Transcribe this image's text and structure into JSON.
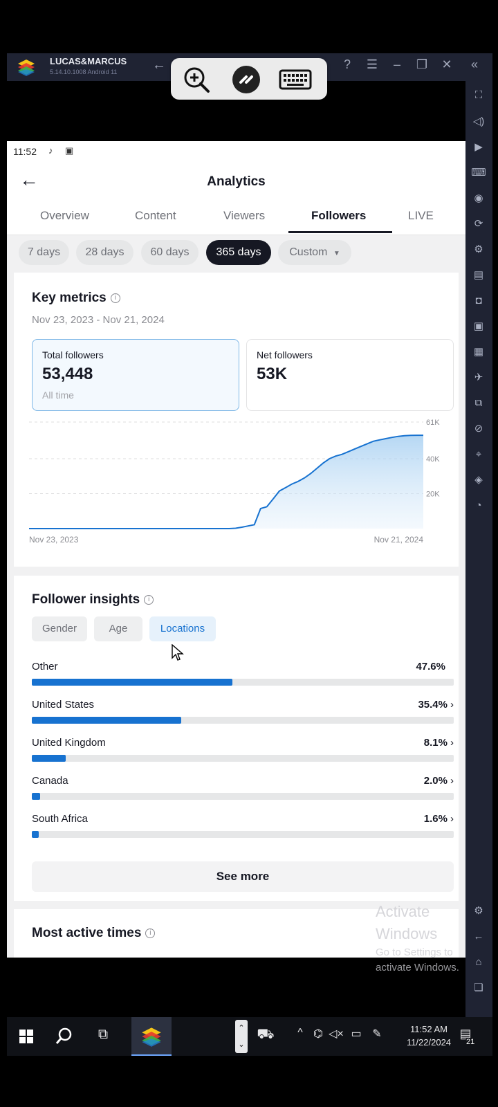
{
  "emulator": {
    "name": "LUCAS&MARCUS",
    "version": "5.14.10.1008  Android 11"
  },
  "status_bar": {
    "time": "11:52"
  },
  "header": {
    "title": "Analytics",
    "tabs": [
      "Overview",
      "Content",
      "Viewers",
      "Followers",
      "LIVE"
    ],
    "active_tab": "Followers"
  },
  "ranges": {
    "options": [
      "7 days",
      "28 days",
      "60 days",
      "365 days",
      "Custom"
    ],
    "selected": "365 days"
  },
  "key_metrics": {
    "title": "Key metrics",
    "date_range": "Nov 23, 2023 - Nov 21, 2024",
    "total_followers": {
      "label": "Total followers",
      "value": "53,448",
      "sub": "All time"
    },
    "net_followers": {
      "label": "Net followers",
      "value": "53K"
    }
  },
  "chart_data": {
    "type": "area",
    "x_labels": [
      "Nov 23, 2023",
      "Nov 21, 2024"
    ],
    "y_ticks": [
      "61K",
      "40K",
      "20K"
    ],
    "ylim": [
      0,
      61000
    ],
    "series": [
      {
        "values": [
          0,
          0,
          0,
          0,
          0,
          0,
          0,
          0,
          0,
          0,
          0,
          0,
          0,
          0,
          0,
          0,
          0,
          0,
          0,
          0,
          0,
          0,
          0,
          0,
          0,
          0,
          0,
          0,
          0,
          0,
          0,
          0,
          0,
          200,
          800,
          1500,
          2200,
          11500,
          12500,
          17000,
          21500,
          23500,
          25500,
          27000,
          29000,
          31500,
          34500,
          37500,
          40000,
          41500,
          42500,
          44000,
          45500,
          47000,
          48500,
          50000,
          50800,
          51500,
          52200,
          52800,
          53200,
          53400,
          53448,
          53448
        ]
      }
    ],
    "grid": true,
    "color": "#1772d0"
  },
  "insights": {
    "title": "Follower insights",
    "tabs": [
      "Gender",
      "Age",
      "Locations"
    ],
    "active_tab": "Locations",
    "locations": [
      {
        "name": "Other",
        "pct_label": "47.6%",
        "pct": 47.6,
        "chevron": false
      },
      {
        "name": "United States",
        "pct_label": "35.4%",
        "pct": 35.4,
        "chevron": true
      },
      {
        "name": "United Kingdom",
        "pct_label": "8.1%",
        "pct": 8.1,
        "chevron": true
      },
      {
        "name": "Canada",
        "pct_label": "2.0%",
        "pct": 2.0,
        "chevron": true
      },
      {
        "name": "South Africa",
        "pct_label": "1.6%",
        "pct": 1.6,
        "chevron": true
      }
    ],
    "see_more": "See more"
  },
  "most_active": {
    "title": "Most active times"
  },
  "watermark": {
    "line1": "Activate",
    "line2": "Windows",
    "line3": "Go to Settings to",
    "line4": "activate Windows."
  },
  "taskbar": {
    "time": "11:52 AM",
    "date": "11/22/2024",
    "notifications": "21"
  }
}
